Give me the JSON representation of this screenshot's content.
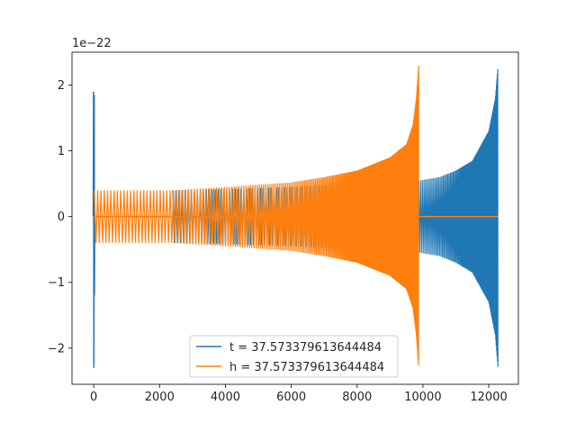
{
  "chart_data": {
    "type": "line",
    "title": "",
    "xlabel": "",
    "ylabel": "",
    "xlim": [
      -660,
      12900
    ],
    "ylim": [
      -2.55,
      2.5
    ],
    "y_scale_note": "1e−22",
    "x_ticks": [
      0,
      2000,
      4000,
      6000,
      8000,
      10000,
      12000
    ],
    "x_tick_labels": [
      "0",
      "2000",
      "4000",
      "6000",
      "8000",
      "10000",
      "12000"
    ],
    "y_ticks": [
      -2,
      -1,
      0,
      1,
      2
    ],
    "y_tick_labels": [
      "−2",
      "−1",
      "0",
      "1",
      "2"
    ],
    "grid": false,
    "legend_position": "lower-center",
    "series": [
      {
        "name": "t = 37.573379613644484",
        "color": "#1f77b4",
        "description": "burst near 0 (±2.3e-22), zero until ~2400, oscillation ±0.4e-22 growing to ±0.55e-22 at ~9900, then chirp to ±2.3e-22 at ~12280",
        "x": [
          0,
          30,
          60,
          2400,
          4000,
          6000,
          8000,
          9900,
          10500,
          11000,
          11500,
          12000,
          12200,
          12280
        ],
        "amplitude": [
          2.3,
          0.3,
          0,
          0.4,
          0.42,
          0.45,
          0.5,
          0.55,
          0.6,
          0.7,
          0.85,
          1.3,
          1.8,
          2.3
        ]
      },
      {
        "name": "h = 37.573379613644484",
        "color": "#ff7f0e",
        "description": "oscillation ±0.4e-22 from 0 to ~2400 (flat zero line inside), continues growing chirp to ±2.3e-22 at ~9870, then zero",
        "x": [
          0,
          2400,
          4000,
          6000,
          7000,
          8000,
          9000,
          9500,
          9700,
          9800,
          9870
        ],
        "amplitude": [
          0.4,
          0.4,
          0.45,
          0.52,
          0.6,
          0.7,
          0.9,
          1.1,
          1.4,
          1.8,
          2.3
        ]
      }
    ]
  }
}
